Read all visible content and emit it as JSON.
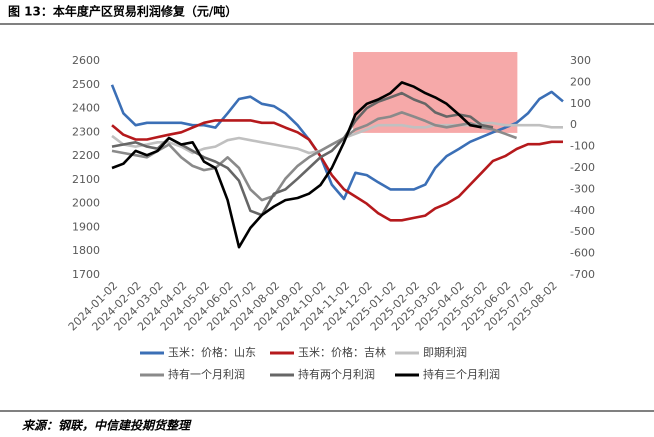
{
  "chart_data": {
    "type": "line",
    "title": "图 13：本年度产区贸易利润修复（元/吨）",
    "source": "来源：钢联，中信建投期货整理",
    "x": [
      "2024-01-02",
      "2024-01-17",
      "2024-02-02",
      "2024-02-17",
      "2024-03-02",
      "2024-03-17",
      "2024-04-02",
      "2024-04-17",
      "2024-05-02",
      "2024-05-17",
      "2024-06-02",
      "2024-06-17",
      "2024-07-02",
      "2024-07-17",
      "2024-08-02",
      "2024-08-17",
      "2024-09-02",
      "2024-09-17",
      "2024-10-02",
      "2024-10-17",
      "2024-11-02",
      "2024-11-17",
      "2024-12-02",
      "2024-12-17",
      "2025-01-02",
      "2025-01-17",
      "2025-02-02",
      "2025-02-17",
      "2025-03-02",
      "2025-03-17",
      "2025-04-02",
      "2025-04-17",
      "2025-05-02",
      "2025-05-17",
      "2025-06-02",
      "2025-06-17",
      "2025-07-02",
      "2025-07-17",
      "2025-08-02",
      "2025-08-17"
    ],
    "xlim": [
      "2024-01-02",
      "2025-08-17"
    ],
    "xticks": [
      "2024-01-02",
      "2024-02-02",
      "2024-03-02",
      "2024-04-02",
      "2024-05-02",
      "2024-06-02",
      "2024-07-02",
      "2024-08-02",
      "2024-09-02",
      "2024-10-02",
      "2024-11-02",
      "2024-12-02",
      "2025-01-02",
      "2025-02-02",
      "2025-03-02",
      "2025-04-02",
      "2025-05-02",
      "2025-06-02",
      "2025-07-02",
      "2025-08-02"
    ],
    "ylim": [
      1700,
      2600
    ],
    "yticks": [
      1700,
      1800,
      1900,
      2000,
      2100,
      2200,
      2300,
      2400,
      2500,
      2600
    ],
    "y2lim": [
      -700,
      300
    ],
    "y2ticks": [
      -700,
      -600,
      -500,
      -400,
      -300,
      -200,
      -100,
      0,
      100,
      200,
      300
    ],
    "highlight": {
      "x": [
        "2024-11-14",
        "2025-06-18"
      ],
      "y2": [
        -36,
        342
      ],
      "color": "#f59a9a"
    },
    "series": [
      {
        "name": "玉米：价格：山东",
        "color": "#3b6fb6",
        "values": [
          2500,
          2380,
          2330,
          2340,
          2340,
          2340,
          2340,
          2330,
          2330,
          2320,
          2380,
          2440,
          2450,
          2420,
          2410,
          2380,
          2330,
          2270,
          2200,
          2080,
          2020,
          2130,
          2120,
          2090,
          2060,
          2060,
          2060,
          2080,
          2150,
          2200,
          2230,
          2260,
          2280,
          2300,
          2320,
          2340,
          2380,
          2440,
          2470,
          2430
        ]
      },
      {
        "name": "玉米：价格：吉林",
        "color": "#b5191c",
        "values": [
          2330,
          2290,
          2270,
          2270,
          2280,
          2290,
          2300,
          2320,
          2340,
          2350,
          2350,
          2350,
          2350,
          2340,
          2340,
          2320,
          2300,
          2270,
          2200,
          2120,
          2060,
          2030,
          2000,
          1960,
          1930,
          1930,
          1940,
          1950,
          1980,
          2000,
          2030,
          2080,
          2130,
          2180,
          2200,
          2230,
          2250,
          2250,
          2260,
          2260
        ]
      },
      {
        "name": "即期利润",
        "color": "#c0c0c0",
        "axis": "y2",
        "values": [
          -50,
          -90,
          -100,
          -90,
          -80,
          -80,
          -100,
          -130,
          -110,
          -100,
          -70,
          -60,
          -70,
          -80,
          -90,
          -100,
          -110,
          -130,
          -120,
          -90,
          -60,
          -40,
          -20,
          0,
          0,
          0,
          -10,
          -10,
          0,
          0,
          0,
          0,
          10,
          10,
          0,
          0,
          0,
          0,
          -10,
          -10
        ]
      },
      {
        "name": "持有一个月利润",
        "color": "#8a8a8a",
        "axis": "y2",
        "values": [
          -120,
          -130,
          -140,
          -150,
          -120,
          -90,
          -150,
          -190,
          -210,
          -200,
          -150,
          -200,
          -300,
          -350,
          -330,
          -250,
          -190,
          -150,
          -120,
          -90,
          -60,
          -20,
          0,
          30,
          40,
          60,
          40,
          20,
          0,
          -10,
          0,
          10,
          -10,
          -20,
          -40,
          -60,
          null,
          null,
          null,
          null
        ]
      },
      {
        "name": "持有两个月利润",
        "color": "#666666",
        "axis": "y2",
        "values": [
          -100,
          -90,
          -80,
          -100,
          -110,
          -60,
          -90,
          -120,
          -150,
          -170,
          -200,
          -260,
          -400,
          -420,
          -320,
          -300,
          -250,
          -200,
          -150,
          -120,
          -60,
          20,
          80,
          110,
          130,
          150,
          120,
          100,
          60,
          40,
          50,
          40,
          0,
          -10,
          null,
          null,
          null,
          null,
          null,
          null
        ]
      },
      {
        "name": "持有三个月利润",
        "color": "#000000",
        "axis": "y2",
        "values": [
          -200,
          -180,
          -120,
          -140,
          -120,
          -60,
          -90,
          -80,
          -170,
          -200,
          -350,
          -570,
          -480,
          -420,
          -380,
          -350,
          -340,
          -320,
          -280,
          -200,
          -80,
          50,
          100,
          120,
          150,
          200,
          180,
          150,
          130,
          100,
          50,
          0,
          -10,
          null,
          null,
          null,
          null,
          null,
          null,
          null
        ]
      }
    ]
  }
}
